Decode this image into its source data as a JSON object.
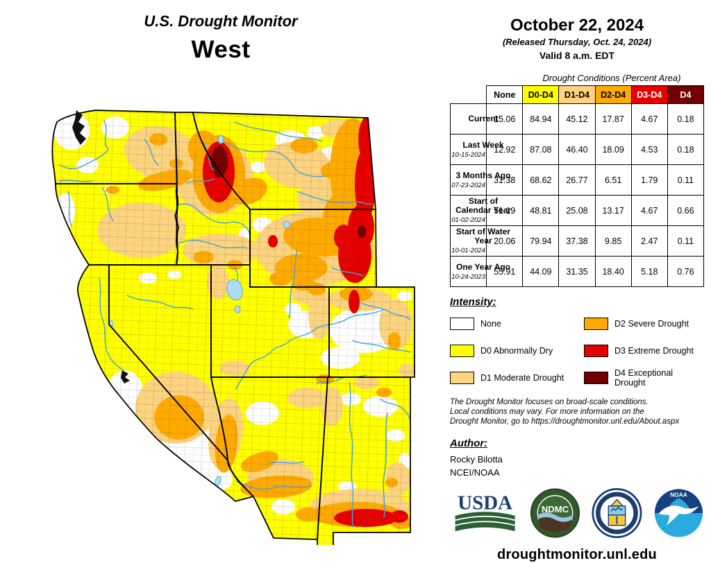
{
  "title": {
    "line1": "U.S. Drought Monitor",
    "line2": "West"
  },
  "date_block": {
    "date": "October 22, 2024",
    "released": "(Released Thursday, Oct. 24, 2024)",
    "valid": "Valid 8 a.m. EDT"
  },
  "table": {
    "caption": "Drought Conditions (Percent Area)",
    "columns": [
      {
        "label": "None",
        "bg": "#FFFFFF",
        "fg": "#000000"
      },
      {
        "label": "D0-D4",
        "bg": "#FFFF00",
        "fg": "#000000"
      },
      {
        "label": "D1-D4",
        "bg": "#FCD37F",
        "fg": "#000000"
      },
      {
        "label": "D2-D4",
        "bg": "#FFAA00",
        "fg": "#000000"
      },
      {
        "label": "D3-D4",
        "bg": "#E60000",
        "fg": "#FFFFFF"
      },
      {
        "label": "D4",
        "bg": "#730000",
        "fg": "#FFFFFF"
      }
    ],
    "rows": [
      {
        "label": "Current",
        "date": "",
        "values": [
          "15.06",
          "84.94",
          "45.12",
          "17.87",
          "4.67",
          "0.18"
        ]
      },
      {
        "label": "Last Week",
        "date": "10-15-2024",
        "values": [
          "12.92",
          "87.08",
          "46.40",
          "18.09",
          "4.53",
          "0.18"
        ]
      },
      {
        "label": "3 Months Ago",
        "date": "07-23-2024",
        "values": [
          "31.38",
          "68.62",
          "26.77",
          "6.51",
          "1.79",
          "0.11"
        ]
      },
      {
        "label": "Start of Calendar Year",
        "date": "01-02-2024",
        "values": [
          "51.19",
          "48.81",
          "25.08",
          "13.17",
          "4.67",
          "0.66"
        ]
      },
      {
        "label": "Start of Water Year",
        "date": "10-01-2024",
        "values": [
          "20.06",
          "79.94",
          "37.38",
          "9.85",
          "2.47",
          "0.11"
        ]
      },
      {
        "label": "One Year Ago",
        "date": "10-24-2023",
        "values": [
          "55.91",
          "44.09",
          "31.35",
          "18.40",
          "5.18",
          "0.76"
        ]
      }
    ]
  },
  "legend": {
    "title": "Intensity:",
    "items": [
      {
        "label": "None",
        "color": "#FFFFFF"
      },
      {
        "label": "D0 Abnormally Dry",
        "color": "#FFFF00"
      },
      {
        "label": "D1 Moderate Drought",
        "color": "#FCD37F"
      },
      {
        "label": "D2 Severe Drought",
        "color": "#FFAA00"
      },
      {
        "label": "D3 Extreme Drought",
        "color": "#E60000"
      },
      {
        "label": "D4 Exceptional Drought",
        "color": "#730000"
      }
    ]
  },
  "disclaimer_lines": [
    "The Drought Monitor focuses on broad-scale conditions.",
    "Local conditions may vary. For more information on the",
    "Drought Monitor, go to https://droughtmonitor.unl.edu/About.aspx"
  ],
  "author": {
    "title": "Author:",
    "name": "Rocky Bilotta",
    "org": "NCEI/NOAA"
  },
  "logos": {
    "usda": "USDA",
    "ndmc": "NDMC",
    "noaa": "NOAA"
  },
  "footer_url": "droughtmonitor.unl.edu",
  "map": {
    "region": "West",
    "colors": {
      "none": "#FFFFFF",
      "d0": "#FFFF00",
      "d1": "#FCD37F",
      "d2": "#FFAA00",
      "d3": "#E60000",
      "d4": "#730000",
      "river": "#44A1E0",
      "lake": "#AEDCF0"
    }
  }
}
